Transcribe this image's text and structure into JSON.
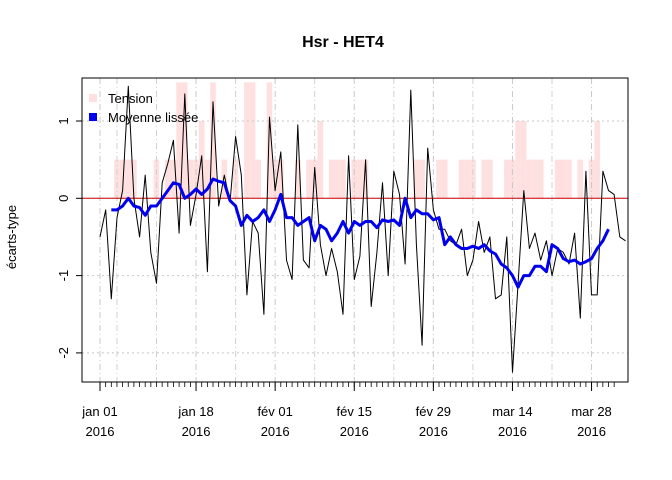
{
  "chart_data": {
    "type": "line",
    "title": "Hsr - HET4",
    "ylabel": "écarts-type",
    "xlabel": "",
    "ylim": [
      -2.4,
      1.6
    ],
    "y_ticks": [
      -2,
      -1,
      0,
      1
    ],
    "x_ticks": [
      {
        "day": 0,
        "line1": "jan 01",
        "line2": "2016"
      },
      {
        "day": 17,
        "line1": "jan 18",
        "line2": "2016"
      },
      {
        "day": 31,
        "line1": "fév 01",
        "line2": "2016"
      },
      {
        "day": 45,
        "line1": "fév 15",
        "line2": "2016"
      },
      {
        "day": 59,
        "line1": "fév 29",
        "line2": "2016"
      },
      {
        "day": 73,
        "line1": "mar 14",
        "line2": "2016"
      },
      {
        "day": 87,
        "line1": "mar 28",
        "line2": "2016"
      }
    ],
    "grid": true,
    "reference_line": 0,
    "legend_position": "top-left",
    "legend": [
      {
        "label": "Tension",
        "color": "#ffe0e0"
      },
      {
        "label": "Moyenne lissée",
        "color": "#0000ee"
      }
    ],
    "series": [
      {
        "name": "Moyenne lissée",
        "color": "#0000ee",
        "x": [
          2,
          3,
          4,
          5,
          6,
          7,
          8,
          9,
          10,
          11,
          12,
          13,
          14,
          15,
          16,
          17,
          18,
          19,
          20,
          21,
          22,
          23,
          24,
          25,
          26,
          27,
          28,
          29,
          30,
          31,
          32,
          33,
          34,
          35,
          36,
          37,
          38,
          39,
          40,
          41,
          42,
          43,
          44,
          45,
          46,
          47,
          48,
          49,
          50,
          51,
          52,
          53,
          54,
          55,
          56,
          57,
          58,
          59,
          60,
          61,
          62,
          63,
          64,
          65,
          66,
          67,
          68,
          69,
          70,
          71,
          72,
          73,
          74,
          75,
          76,
          77,
          78,
          79,
          80,
          81,
          82,
          83,
          84,
          85,
          86,
          87,
          88,
          89,
          90
        ],
        "values": [
          -0.15,
          -0.15,
          -0.1,
          0.0,
          -0.1,
          -0.12,
          -0.22,
          -0.1,
          -0.1,
          0.0,
          0.1,
          0.2,
          0.18,
          0.0,
          0.05,
          0.12,
          0.05,
          0.12,
          0.25,
          0.22,
          0.2,
          -0.03,
          -0.1,
          -0.35,
          -0.22,
          -0.3,
          -0.25,
          -0.15,
          -0.3,
          -0.15,
          0.05,
          -0.25,
          -0.25,
          -0.35,
          -0.3,
          -0.25,
          -0.55,
          -0.35,
          -0.4,
          -0.55,
          -0.45,
          -0.3,
          -0.45,
          -0.3,
          -0.35,
          -0.3,
          -0.3,
          -0.38,
          -0.28,
          -0.3,
          -0.28,
          -0.35,
          0.0,
          -0.25,
          -0.15,
          -0.2,
          -0.2,
          -0.28,
          -0.25,
          -0.6,
          -0.5,
          -0.6,
          -0.65,
          -0.65,
          -0.62,
          -0.65,
          -0.6,
          -0.68,
          -0.72,
          -0.85,
          -0.9,
          -1.0,
          -1.15,
          -1.0,
          -1.0,
          -0.88,
          -0.88,
          -0.95,
          -0.6,
          -0.65,
          -0.78,
          -0.82,
          -0.8,
          -0.85,
          -0.82,
          -0.78,
          -0.65,
          -0.55,
          -0.4
        ]
      },
      {
        "name": "",
        "color": "#000000",
        "x": [
          0,
          1,
          2,
          3,
          4,
          5,
          6,
          7,
          8,
          9,
          10,
          11,
          12,
          13,
          14,
          15,
          16,
          17,
          18,
          19,
          20,
          21,
          22,
          23,
          24,
          25,
          26,
          27,
          28,
          29,
          30,
          31,
          32,
          33,
          34,
          35,
          36,
          37,
          38,
          39,
          40,
          41,
          42,
          43,
          44,
          45,
          46,
          47,
          48,
          49,
          50,
          51,
          52,
          53,
          54,
          55,
          56,
          57,
          58,
          59,
          60,
          61,
          62,
          63,
          64,
          65,
          66,
          67,
          68,
          69,
          70,
          71,
          72,
          73,
          74,
          75,
          76,
          77,
          78,
          79,
          80,
          81,
          82,
          83,
          84,
          85,
          86,
          87,
          88,
          89,
          90,
          91,
          92,
          93
        ],
        "values": [
          -0.5,
          -0.15,
          -1.3,
          -0.25,
          0.1,
          1.45,
          0.0,
          -0.5,
          0.3,
          -0.7,
          -1.1,
          0.2,
          0.45,
          0.75,
          -0.45,
          1.35,
          -0.35,
          0.05,
          0.55,
          -0.95,
          1.25,
          -0.1,
          0.3,
          -0.05,
          0.8,
          0.3,
          -1.25,
          -0.3,
          -0.45,
          -1.5,
          1.05,
          0.1,
          0.6,
          -0.8,
          -1.05,
          0.95,
          -0.8,
          -0.9,
          0.4,
          -0.6,
          -1.0,
          -0.65,
          -0.95,
          -1.5,
          0.55,
          -1.05,
          -0.75,
          0.5,
          -1.4,
          -0.7,
          0.2,
          -1.0,
          0.35,
          0.05,
          -0.85,
          1.4,
          -0.6,
          -1.9,
          0.65,
          -0.15,
          -0.4,
          -0.4,
          -0.55,
          -0.6,
          -0.4,
          -1.0,
          -0.8,
          -0.3,
          -0.7,
          -0.5,
          -1.3,
          -1.25,
          -0.5,
          -2.25,
          -1.1,
          0.1,
          -0.65,
          -0.45,
          -0.8,
          -0.55,
          -1.0,
          -0.65,
          -0.7,
          -0.85,
          -0.45,
          -1.55,
          0.35,
          -1.25,
          -1.25,
          0.35,
          0.1,
          0.05,
          -0.5,
          -0.55
        ]
      }
    ],
    "tension_bars": {
      "color": "#ffe0e0",
      "days": [
        0,
        1,
        2,
        3,
        4,
        5,
        6,
        7,
        8,
        9,
        10,
        11,
        12,
        13,
        14,
        15,
        16,
        17,
        18,
        19,
        20,
        21,
        22,
        23,
        24,
        25,
        26,
        27,
        28,
        29,
        30,
        31,
        32,
        33,
        34,
        35,
        36,
        37,
        38,
        39,
        40,
        41,
        42,
        43,
        44,
        45,
        46,
        47,
        48,
        49,
        50,
        51,
        52,
        53,
        54,
        55,
        56,
        57,
        58,
        59,
        60,
        61,
        62,
        63,
        64,
        65,
        66,
        67,
        68,
        69,
        70,
        71,
        72,
        73,
        74,
        75,
        76,
        77,
        78,
        79,
        80,
        81,
        82,
        83,
        84,
        85,
        86,
        87,
        88,
        89,
        90
      ],
      "values": [
        0,
        0,
        0,
        0.5,
        0.5,
        0.5,
        0.5,
        0,
        0,
        0,
        0.5,
        0,
        0.5,
        0.5,
        1.5,
        1.5,
        0.5,
        0.5,
        1.0,
        0.5,
        1.5,
        0,
        0.5,
        0,
        0.5,
        0,
        1.5,
        1.5,
        0.5,
        0,
        1.5,
        0.5,
        0.5,
        0,
        0,
        0.5,
        0,
        0.5,
        0.5,
        1.0,
        0,
        0.5,
        0.5,
        0.5,
        0,
        0.5,
        0.5,
        0.5,
        0,
        0,
        0,
        0,
        0,
        0,
        0,
        0,
        0.5,
        0.5,
        0,
        0,
        0.5,
        0.5,
        0,
        0,
        0.5,
        0.5,
        0.5,
        0,
        0.5,
        0.5,
        0,
        0,
        0.5,
        0.5,
        1.0,
        1.0,
        0.5,
        0.5,
        0.5,
        0,
        0,
        0.5,
        0.5,
        0.5,
        0,
        0.5,
        0,
        0.5,
        1.0,
        0,
        0
      ]
    }
  }
}
